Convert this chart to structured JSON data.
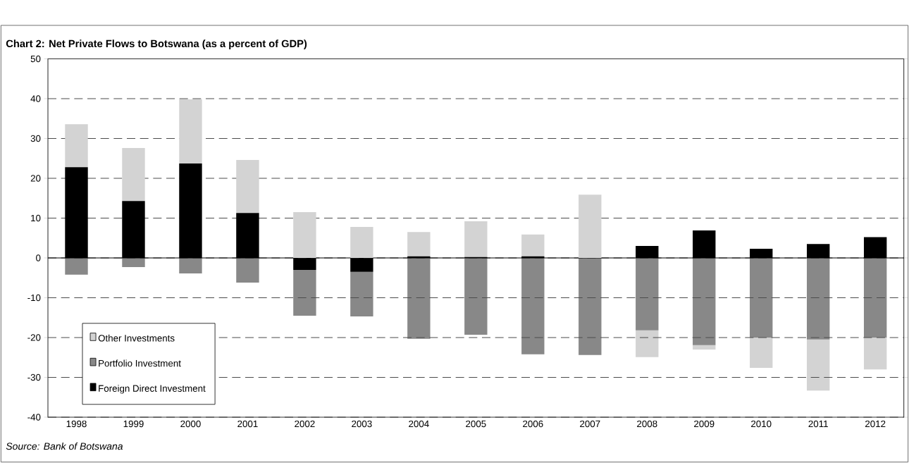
{
  "chart_data": {
    "type": "bar",
    "stacked": true,
    "title": "Chart 2: Net Private Flows to Botswana  (as a percent of GDP)",
    "categories": [
      "1998",
      "1999",
      "2000",
      "2001",
      "2002",
      "2003",
      "2004",
      "2005",
      "2006",
      "2007",
      "2008",
      "2009",
      "2010",
      "2011",
      "2012"
    ],
    "series": [
      {
        "name": "Foreign Direct Investment",
        "color": "#000000",
        "values": [
          22.8,
          14.3,
          23.7,
          11.3,
          -3.0,
          -3.5,
          0.4,
          0.2,
          0.4,
          0,
          3.0,
          6.9,
          2.3,
          3.5,
          5.2
        ]
      },
      {
        "name": "Portfolio Investment",
        "color": "#888888",
        "values": [
          -4.2,
          -2.3,
          -3.9,
          -6.2,
          -11.5,
          -11.2,
          -20.3,
          -19.3,
          -24.2,
          -24.4,
          -18.2,
          -21.9,
          -20.0,
          -20.5,
          -20.0
        ]
      },
      {
        "name": "Other Investments",
        "color": "#d3d3d3",
        "values": [
          10.8,
          13.3,
          16.1,
          13.3,
          11.5,
          7.8,
          6.1,
          9.0,
          5.5,
          15.9,
          -6.7,
          -1.1,
          -7.6,
          -12.8,
          -8.0
        ]
      }
    ],
    "ylim": [
      -40,
      50
    ],
    "yticks": [
      -40,
      -30,
      -20,
      -10,
      0,
      10,
      20,
      30,
      40,
      50
    ],
    "grid": "y",
    "legend": "bottom left",
    "annotations": [
      "*Source: Bank of Botswana*"
    ]
  }
}
